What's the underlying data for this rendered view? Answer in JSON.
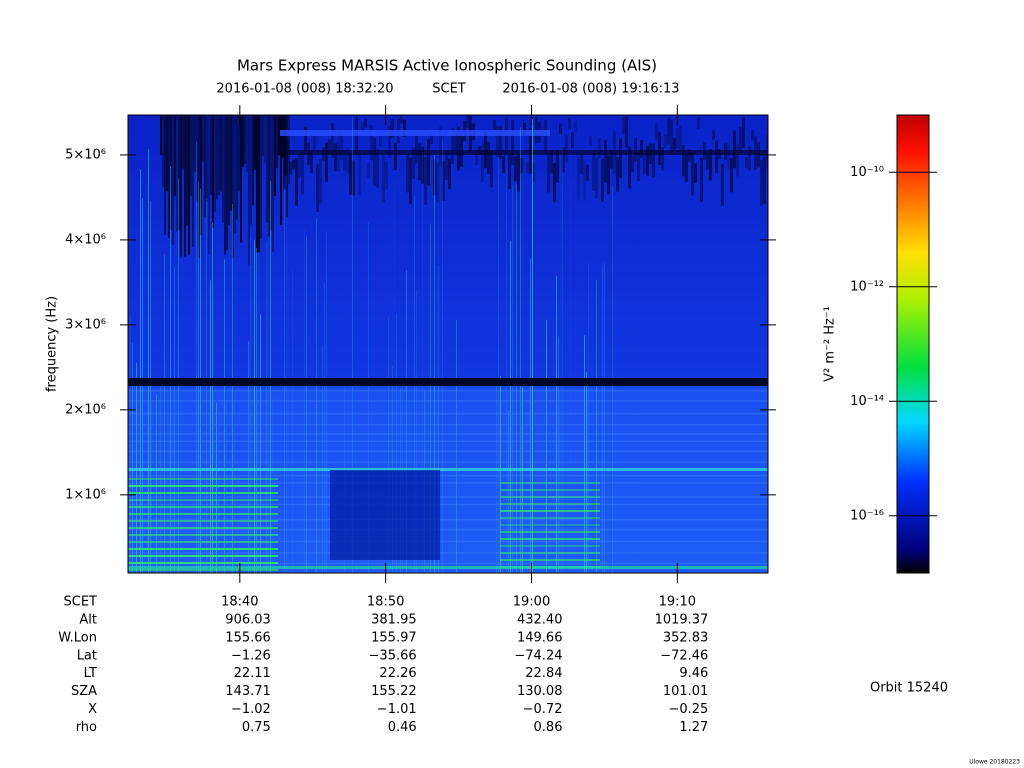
{
  "chart_data": {
    "type": "spectrogram",
    "title": "Mars Express MARSIS Active Ionospheric Sounding (AIS)",
    "subtitle": {
      "start": "2016-01-08 (008) 18:32:20",
      "frame": "SCET",
      "end": "2016-01-08 (008) 19:16:13"
    },
    "ylabel": "frequency (Hz)",
    "ylim": [
      80000,
      5470000
    ],
    "yticks": [
      {
        "value": 1000000,
        "label": "1×10⁶"
      },
      {
        "value": 2000000,
        "label": "2×10⁶"
      },
      {
        "value": 3000000,
        "label": "3×10⁶"
      },
      {
        "value": 4000000,
        "label": "4×10⁶"
      },
      {
        "value": 5000000,
        "label": "5×10⁶"
      }
    ],
    "xlabel": "SCET",
    "xticks": [
      "18:40",
      "18:50",
      "19:00",
      "19:10"
    ],
    "colorbar": {
      "label": "V² m⁻² Hz⁻¹",
      "scale": "log",
      "clim": [
        1e-17,
        1e-09
      ],
      "ticks": [
        {
          "value": 1e-10,
          "label": "10⁻¹⁰"
        },
        {
          "value": 1e-12,
          "label": "10⁻¹²"
        },
        {
          "value": 1e-14,
          "label": "10⁻¹⁴"
        },
        {
          "value": 1e-16,
          "label": "10⁻¹⁶"
        }
      ]
    }
  },
  "ephemeris": {
    "rows": [
      {
        "label": "Alt",
        "values": [
          906.03,
          381.95,
          432.4,
          1019.37
        ],
        "texts": [
          "906.03",
          "381.95",
          "432.40",
          "1019.37"
        ]
      },
      {
        "label": "W.Lon",
        "values": [
          155.66,
          155.97,
          149.66,
          352.83
        ],
        "texts": [
          "155.66",
          "155.97",
          "149.66",
          "352.83"
        ]
      },
      {
        "label": "Lat",
        "values": [
          -1.26,
          -35.66,
          -74.24,
          -72.46
        ],
        "texts": [
          "−1.26",
          "−35.66",
          "−74.24",
          "−72.46"
        ]
      },
      {
        "label": "LT",
        "values": [
          22.11,
          22.26,
          22.84,
          9.46
        ],
        "texts": [
          "22.11",
          "22.26",
          "22.84",
          "9.46"
        ]
      },
      {
        "label": "SZA",
        "values": [
          143.71,
          155.22,
          130.08,
          101.01
        ],
        "texts": [
          "143.71",
          "155.22",
          "130.08",
          "101.01"
        ]
      },
      {
        "label": "X",
        "values": [
          -1.02,
          -1.01,
          -0.72,
          -0.25
        ],
        "texts": [
          "−1.02",
          "−1.01",
          "−0.72",
          "−0.25"
        ]
      },
      {
        "label": "rho",
        "values": [
          0.75,
          0.46,
          0.86,
          1.27
        ],
        "texts": [
          "0.75",
          "0.46",
          "0.86",
          "1.27"
        ]
      }
    ]
  },
  "orbit": "Orbit 15240",
  "footer": "Ulowe 20180223"
}
